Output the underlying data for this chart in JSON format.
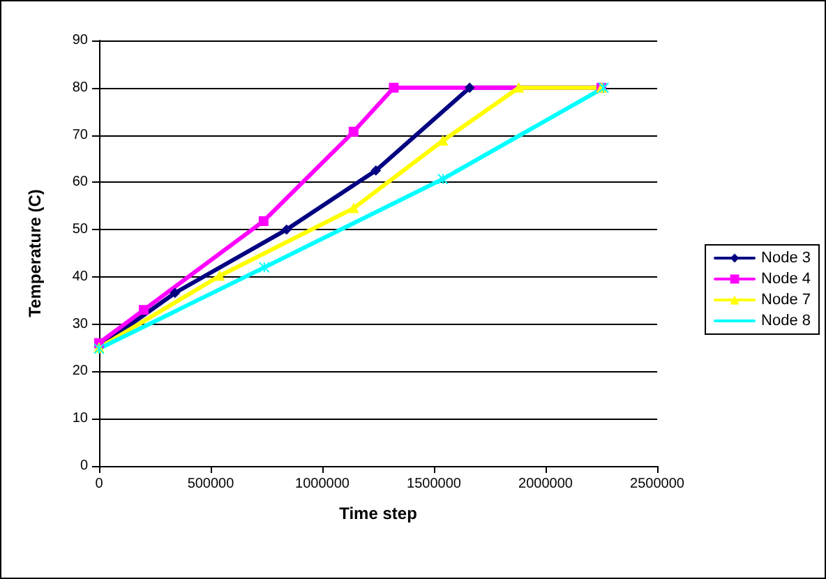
{
  "chart_data": {
    "type": "line",
    "xlabel": "Time step",
    "ylabel": "Temperature (C)",
    "xlim": [
      0,
      2500000
    ],
    "xticks": [
      0,
      500000,
      1000000,
      1500000,
      2000000,
      2500000
    ],
    "ylim": [
      0,
      90
    ],
    "yticks": [
      0,
      10,
      20,
      30,
      40,
      50,
      60,
      70,
      80,
      90
    ],
    "grid": "y",
    "legend": "right",
    "series": [
      {
        "name": "Node 3",
        "color": "#000080",
        "marker": "diamond",
        "x": [
          0,
          340000,
          840000,
          1240000,
          1660000,
          2250000
        ],
        "values": [
          25.2,
          36.6,
          50,
          62.5,
          80,
          80
        ]
      },
      {
        "name": "Node 4",
        "color": "#ff00ff",
        "marker": "square",
        "x": [
          0,
          200000,
          737000,
          1140000,
          1320000,
          2250000
        ],
        "values": [
          26,
          33,
          51.8,
          70.7,
          80,
          80
        ]
      },
      {
        "name": "Node 7",
        "color": "#ffff00",
        "marker": "triangle",
        "x": [
          0,
          540000,
          1140000,
          1540000,
          1880000,
          2250000
        ],
        "values": [
          25,
          40.2,
          54.5,
          68.8,
          80,
          80
        ]
      },
      {
        "name": "Node 8",
        "color": "#00ffff",
        "marker": "cross",
        "x": [
          0,
          740000,
          1540000,
          2260000
        ],
        "values": [
          24.8,
          42,
          60.7,
          80
        ]
      }
    ]
  }
}
